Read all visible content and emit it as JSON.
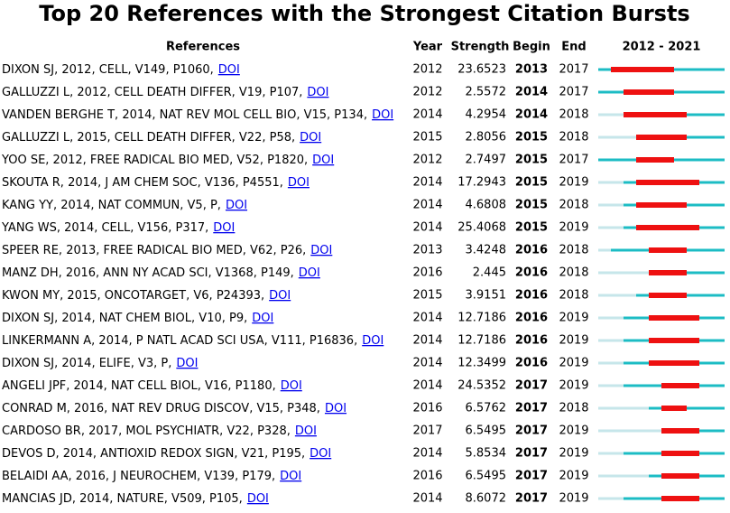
{
  "title": "Top 20 References with the Strongest Citation Bursts",
  "table": {
    "columns": {
      "reference": "References",
      "year": "Year",
      "strength": "Strength",
      "begin": "Begin",
      "end": "End"
    },
    "timeline": {
      "label": "2012 - 2021",
      "start": 2012,
      "end": 2021
    },
    "rows": [
      {
        "reference": "DIXON SJ, 2012, CELL, V149, P1060,",
        "link": "DOI",
        "year": 2012,
        "strength": 23.6523,
        "begin": 2013,
        "end": 2017
      },
      {
        "reference": "GALLUZZI L, 2012, CELL DEATH DIFFER, V19, P107,",
        "link": "DOI",
        "year": 2012,
        "strength": 2.5572,
        "begin": 2014,
        "end": 2017
      },
      {
        "reference": "VANDEN BERGHE T, 2014, NAT REV MOL CELL BIO, V15, P134,",
        "link": "DOI",
        "year": 2014,
        "strength": 4.2954,
        "begin": 2014,
        "end": 2018
      },
      {
        "reference": "GALLUZZI L, 2015, CELL DEATH DIFFER, V22, P58,",
        "link": "DOI",
        "year": 2015,
        "strength": 2.8056,
        "begin": 2015,
        "end": 2018
      },
      {
        "reference": "YOO SE, 2012, FREE RADICAL BIO MED, V52, P1820,",
        "link": "DOI",
        "year": 2012,
        "strength": 2.7497,
        "begin": 2015,
        "end": 2017
      },
      {
        "reference": "SKOUTA R, 2014, J AM CHEM SOC, V136, P4551,",
        "link": "DOI",
        "year": 2014,
        "strength": 17.2943,
        "begin": 2015,
        "end": 2019
      },
      {
        "reference": "KANG YY, 2014, NAT COMMUN, V5, P,",
        "link": "DOI",
        "year": 2014,
        "strength": 4.6808,
        "begin": 2015,
        "end": 2018
      },
      {
        "reference": "YANG WS, 2014, CELL, V156, P317,",
        "link": "DOI",
        "year": 2014,
        "strength": 25.4068,
        "begin": 2015,
        "end": 2019
      },
      {
        "reference": "SPEER RE, 2013, FREE RADICAL BIO MED, V62, P26,",
        "link": "DOI",
        "year": 2013,
        "strength": 3.4248,
        "begin": 2016,
        "end": 2018
      },
      {
        "reference": "MANZ DH, 2016, ANN NY ACAD SCI, V1368, P149,",
        "link": "DOI",
        "year": 2016,
        "strength": 2.445,
        "begin": 2016,
        "end": 2018
      },
      {
        "reference": "KWON MY, 2015, ONCOTARGET, V6, P24393,",
        "link": "DOI",
        "year": 2015,
        "strength": 3.9151,
        "begin": 2016,
        "end": 2018
      },
      {
        "reference": "DIXON SJ, 2014, NAT CHEM BIOL, V10, P9,",
        "link": "DOI",
        "year": 2014,
        "strength": 12.7186,
        "begin": 2016,
        "end": 2019
      },
      {
        "reference": "LINKERMANN A, 2014, P NATL ACAD SCI USA, V111, P16836,",
        "link": "DOI",
        "year": 2014,
        "strength": 12.7186,
        "begin": 2016,
        "end": 2019
      },
      {
        "reference": "DIXON SJ, 2014, ELIFE, V3, P,",
        "link": "DOI",
        "year": 2014,
        "strength": 12.3499,
        "begin": 2016,
        "end": 2019
      },
      {
        "reference": "ANGELI JPF, 2014, NAT CELL BIOL, V16, P1180,",
        "link": "DOI",
        "year": 2014,
        "strength": 24.5352,
        "begin": 2017,
        "end": 2019
      },
      {
        "reference": "CONRAD M, 2016, NAT REV DRUG DISCOV, V15, P348,",
        "link": "DOI",
        "year": 2016,
        "strength": 6.5762,
        "begin": 2017,
        "end": 2018
      },
      {
        "reference": "CARDOSO BR, 2017, MOL PSYCHIATR, V22, P328,",
        "link": "DOI",
        "year": 2017,
        "strength": 6.5495,
        "begin": 2017,
        "end": 2019
      },
      {
        "reference": "DEVOS D, 2014, ANTIOXID REDOX SIGN, V21, P195,",
        "link": "DOI",
        "year": 2014,
        "strength": 5.8534,
        "begin": 2017,
        "end": 2019
      },
      {
        "reference": "BELAIDI AA, 2016, J NEUROCHEM, V139, P179,",
        "link": "DOI",
        "year": 2016,
        "strength": 6.5495,
        "begin": 2017,
        "end": 2019
      },
      {
        "reference": "MANCIAS JD, 2014, NATURE, V509, P105,",
        "link": "DOI",
        "year": 2014,
        "strength": 8.6072,
        "begin": 2017,
        "end": 2019
      }
    ]
  }
}
